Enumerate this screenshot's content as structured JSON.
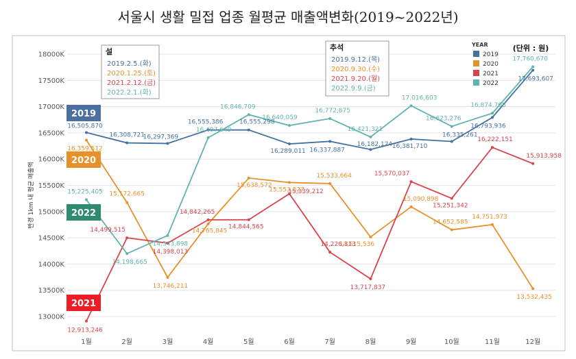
{
  "chart_data": {
    "type": "line",
    "title": "서울시 생활 밀접 업종 월평균 매출액변화(2019~2022년)",
    "ylabel": "반경 1km 내 평균 매출액",
    "unit_note": "(단위 : 원)",
    "legend_title": "YEAR",
    "ylim": [
      13000000,
      18000000
    ],
    "y_ticks": [
      13000000,
      13500000,
      14000000,
      14500000,
      15000000,
      15500000,
      16000000,
      16500000,
      17000000,
      17500000,
      18000000
    ],
    "y_tick_labels": [
      "13000K",
      "13500K",
      "14000K",
      "14500K",
      "15000K",
      "15500K",
      "16000K",
      "16500K",
      "17000K",
      "17500K",
      "18000K"
    ],
    "categories": [
      "1월",
      "2월",
      "3월",
      "4월",
      "5월",
      "6월",
      "7월",
      "8월",
      "9월",
      "10월",
      "11월",
      "12월"
    ],
    "series": [
      {
        "name": "2019",
        "color": "#4472a0",
        "values": [
          16505870,
          16308721,
          16297369,
          16555386,
          16555298,
          16289011,
          16337887,
          16182124,
          16381710,
          16335261,
          16793936,
          17693607
        ],
        "labels": [
          "16,505,870",
          "16,308,721",
          "16,297,369",
          "16,555,386",
          "16,555,298",
          "16,289,011",
          "16,337,887",
          "16,182,124",
          "16,381,710",
          "16,335,261",
          "16,793,936",
          "17,693,607"
        ]
      },
      {
        "name": "2020",
        "color": "#e8902a",
        "values": [
          16359512,
          15172665,
          13746211,
          14765845,
          15638572,
          15553327,
          15533664,
          14515536,
          15090898,
          14652585,
          14751973,
          13532435
        ],
        "labels": [
          "16,359,512",
          "15,172,665",
          "13,746,211",
          "14,765,845",
          "15,638,572",
          "15,553,327",
          "15,533,664",
          "14,515,536",
          "15,090,898",
          "14,652,585",
          "14,751,973",
          "13,532,435"
        ]
      },
      {
        "name": "2021",
        "color": "#d9434e",
        "values": [
          12913246,
          14499515,
          14398013,
          14842265,
          14844565,
          15339212,
          14226313,
          13717837,
          15570037,
          15251342,
          16222151,
          15913958
        ],
        "labels": [
          "12,913,246",
          "14,499,515",
          "14,398,013",
          "14,842,265",
          "14,844,565",
          "15,339,212",
          "14,226,313",
          "13,717,837",
          "15,570,037",
          "15,251,342",
          "16,222,151",
          "15,913,958"
        ]
      },
      {
        "name": "2022",
        "color": "#5fb3ad",
        "values": [
          15225405,
          14198665,
          14543898,
          16407649,
          16846709,
          16640059,
          16772875,
          16421321,
          17016603,
          16623276,
          16874708,
          17760670
        ],
        "labels": [
          "15,225,405",
          "14,198,665",
          "14,543,898",
          "16,407,649",
          "16,846,709",
          "16,640,059",
          "16,772,875",
          "16,421,321",
          "17,016,603",
          "16,623,276",
          "16,874,708",
          "17,760,670"
        ]
      }
    ],
    "tags": [
      {
        "text": "2019",
        "color": "#4a6fa0"
      },
      {
        "text": "2020",
        "color": "#e8902a"
      },
      {
        "text": "2022",
        "color": "#2e8b6e"
      },
      {
        "text": "2021",
        "color": "#ee1c25"
      }
    ],
    "boxes": [
      {
        "header": "설",
        "lines": [
          {
            "text": "2019.2.5.(화)",
            "color": "#4472a0"
          },
          {
            "text": "2020.1.25.(토)",
            "color": "#e8902a"
          },
          {
            "text": "2021.2.12.(금)",
            "color": "#d9434e"
          },
          {
            "text": "2022.2.1.(화)",
            "color": "#5fb3ad"
          }
        ]
      },
      {
        "header": "추석",
        "lines": [
          {
            "text": "2019.9.12.(목)",
            "color": "#4472a0"
          },
          {
            "text": "2020.9.30.(수)",
            "color": "#e8902a"
          },
          {
            "text": "2021.9.20.(월)",
            "color": "#d9434e"
          },
          {
            "text": "2022.9.9.(금)",
            "color": "#5fb3ad"
          }
        ]
      }
    ]
  }
}
